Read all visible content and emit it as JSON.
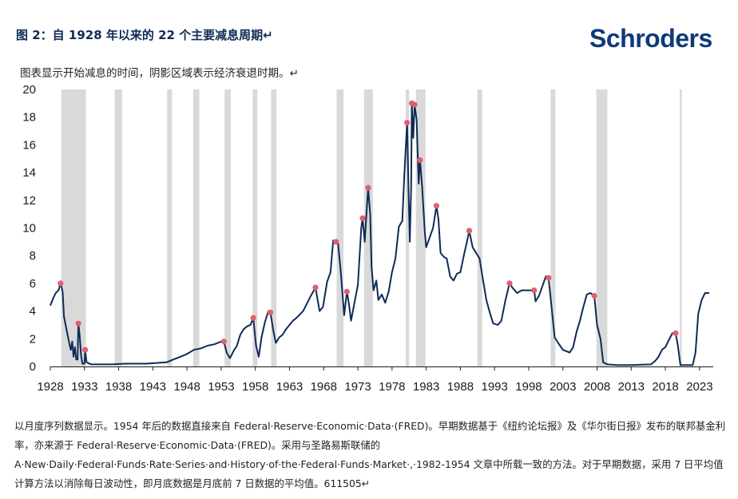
{
  "header": {
    "title": "图 2：自 1928 年以来的 22 个主要减息周期↵",
    "brand": "Schroders"
  },
  "subtitle": "图表显示开始减息的时间，阴影区域表示经济衰退时期。↵",
  "footnote": "以月度序列数据显示。1954 年后的数据直接来自 Federal·Reserve·Economic·Data·(FRED)。早期数据基于《纽约论坛报》及《华尔街日报》发布的联邦基金利率，亦来源于 Federal·Reserve·Economic·Data·(FRED)。采用与圣路易斯联储的 A·New·Daily·Federal·Funds·Rate·Series·and·History·of·the·Federal·Funds·Market·,·1982-1954 文章中所载一致的方法。对于早期数据，采用 7 日平均值计算方法以消除每日波动性，即月底数据是月底前 7 日数据的平均值。611505↵",
  "colors": {
    "line": "#0e2b56",
    "marker": "#e0606f",
    "recession": "#d9d9d9",
    "axis": "#1a1a1a"
  },
  "chart_data": {
    "type": "line",
    "xlim": [
      1928,
      2025
    ],
    "ylim": [
      0,
      20
    ],
    "x_ticks": [
      "1928",
      "1933",
      "1938",
      "1943",
      "1948",
      "1953",
      "1958",
      "1963",
      "1968",
      "1973",
      "1978",
      "1983",
      "1988",
      "1993",
      "1998",
      "2003",
      "2008",
      "2013",
      "2018",
      "2023"
    ],
    "y_ticks": [
      "0",
      "2",
      "4",
      "6",
      "8",
      "10",
      "12",
      "14",
      "16",
      "18",
      "20"
    ],
    "recessions": [
      [
        1929.6,
        1933.2
      ],
      [
        1937.4,
        1938.5
      ],
      [
        1945.1,
        1945.8
      ],
      [
        1948.9,
        1949.8
      ],
      [
        1953.5,
        1954.4
      ],
      [
        1957.6,
        1958.3
      ],
      [
        1960.3,
        1961.1
      ],
      [
        1969.9,
        1970.9
      ],
      [
        1973.9,
        1975.2
      ],
      [
        1980.0,
        1980.5
      ],
      [
        1981.5,
        1982.9
      ],
      [
        1990.5,
        1991.2
      ],
      [
        2001.2,
        2001.9
      ],
      [
        2007.9,
        2009.5
      ],
      [
        2020.1,
        2020.4
      ]
    ],
    "series": [
      {
        "points": [
          [
            1928.0,
            4.4
          ],
          [
            1928.4,
            4.9
          ],
          [
            1928.8,
            5.3
          ],
          [
            1929.2,
            5.5
          ],
          [
            1929.5,
            6.0
          ],
          [
            1929.8,
            5.4
          ],
          [
            1930.0,
            3.6
          ],
          [
            1930.4,
            2.6
          ],
          [
            1930.8,
            1.6
          ],
          [
            1931.0,
            1.2
          ],
          [
            1931.2,
            1.8
          ],
          [
            1931.4,
            0.7
          ],
          [
            1931.6,
            1.4
          ],
          [
            1931.8,
            0.5
          ],
          [
            1932.0,
            0.5
          ],
          [
            1932.1,
            3.1
          ],
          [
            1932.3,
            2.2
          ],
          [
            1932.5,
            0.8
          ],
          [
            1932.7,
            0.2
          ],
          [
            1933.0,
            0.2
          ],
          [
            1933.1,
            1.2
          ],
          [
            1933.3,
            0.3
          ],
          [
            1934.0,
            0.15
          ],
          [
            1937.0,
            0.15
          ],
          [
            1939.0,
            0.2
          ],
          [
            1942.0,
            0.2
          ],
          [
            1945.0,
            0.3
          ],
          [
            1946.0,
            0.5
          ],
          [
            1947.0,
            0.7
          ],
          [
            1948.0,
            0.9
          ],
          [
            1949.0,
            1.2
          ],
          [
            1950.0,
            1.3
          ],
          [
            1951.0,
            1.5
          ],
          [
            1952.0,
            1.6
          ],
          [
            1953.0,
            1.8
          ],
          [
            1953.4,
            1.8
          ],
          [
            1953.8,
            1.0
          ],
          [
            1954.3,
            0.6
          ],
          [
            1954.8,
            1.1
          ],
          [
            1955.3,
            1.5
          ],
          [
            1955.8,
            2.3
          ],
          [
            1956.3,
            2.7
          ],
          [
            1956.8,
            2.9
          ],
          [
            1957.3,
            3.0
          ],
          [
            1957.7,
            3.5
          ],
          [
            1958.1,
            1.5
          ],
          [
            1958.5,
            0.7
          ],
          [
            1958.9,
            2.1
          ],
          [
            1959.4,
            3.2
          ],
          [
            1959.9,
            4.0
          ],
          [
            1960.2,
            3.9
          ],
          [
            1960.7,
            2.4
          ],
          [
            1961.0,
            1.7
          ],
          [
            1961.5,
            2.1
          ],
          [
            1962.0,
            2.3
          ],
          [
            1962.5,
            2.7
          ],
          [
            1963.0,
            3.0
          ],
          [
            1963.5,
            3.3
          ],
          [
            1964.0,
            3.5
          ],
          [
            1965.0,
            4.0
          ],
          [
            1966.0,
            5.0
          ],
          [
            1966.8,
            5.7
          ],
          [
            1967.4,
            4.0
          ],
          [
            1967.9,
            4.3
          ],
          [
            1968.5,
            6.1
          ],
          [
            1969.0,
            6.8
          ],
          [
            1969.4,
            9.1
          ],
          [
            1969.8,
            9.0
          ],
          [
            1970.1,
            8.9
          ],
          [
            1970.5,
            6.8
          ],
          [
            1971.0,
            3.7
          ],
          [
            1971.4,
            5.4
          ],
          [
            1971.7,
            4.5
          ],
          [
            1972.0,
            3.3
          ],
          [
            1972.5,
            4.6
          ],
          [
            1973.0,
            5.9
          ],
          [
            1973.5,
            10.0
          ],
          [
            1973.7,
            10.7
          ],
          [
            1974.0,
            9.0
          ],
          [
            1974.5,
            12.9
          ],
          [
            1974.8,
            11.0
          ],
          [
            1975.0,
            7.2
          ],
          [
            1975.3,
            5.5
          ],
          [
            1975.7,
            6.2
          ],
          [
            1976.0,
            4.8
          ],
          [
            1976.5,
            5.2
          ],
          [
            1977.0,
            4.6
          ],
          [
            1977.5,
            5.4
          ],
          [
            1978.0,
            6.8
          ],
          [
            1978.5,
            7.8
          ],
          [
            1979.0,
            10.1
          ],
          [
            1979.5,
            10.5
          ],
          [
            1979.8,
            13.8
          ],
          [
            1980.2,
            17.6
          ],
          [
            1980.4,
            13.0
          ],
          [
            1980.6,
            9.0
          ],
          [
            1980.8,
            13.0
          ],
          [
            1980.9,
            19.0
          ],
          [
            1981.1,
            16.5
          ],
          [
            1981.3,
            18.9
          ],
          [
            1981.6,
            17.8
          ],
          [
            1981.9,
            13.2
          ],
          [
            1982.1,
            14.9
          ],
          [
            1982.4,
            13.0
          ],
          [
            1982.8,
            9.7
          ],
          [
            1983.0,
            8.6
          ],
          [
            1983.5,
            9.3
          ],
          [
            1984.0,
            10.0
          ],
          [
            1984.5,
            11.6
          ],
          [
            1984.8,
            10.6
          ],
          [
            1985.1,
            8.2
          ],
          [
            1985.6,
            7.9
          ],
          [
            1986.0,
            7.8
          ],
          [
            1986.5,
            6.5
          ],
          [
            1987.0,
            6.2
          ],
          [
            1987.5,
            6.7
          ],
          [
            1988.0,
            6.8
          ],
          [
            1988.5,
            8.0
          ],
          [
            1989.0,
            9.1
          ],
          [
            1989.3,
            9.8
          ],
          [
            1989.8,
            8.6
          ],
          [
            1990.3,
            8.2
          ],
          [
            1990.8,
            7.8
          ],
          [
            1991.3,
            6.3
          ],
          [
            1991.8,
            4.8
          ],
          [
            1992.3,
            3.9
          ],
          [
            1992.8,
            3.1
          ],
          [
            1993.5,
            3.0
          ],
          [
            1994.0,
            3.3
          ],
          [
            1994.6,
            4.8
          ],
          [
            1995.2,
            6.0
          ],
          [
            1995.6,
            5.7
          ],
          [
            1996.3,
            5.3
          ],
          [
            1997.0,
            5.5
          ],
          [
            1997.6,
            5.5
          ],
          [
            1998.3,
            5.5
          ],
          [
            1998.8,
            5.5
          ],
          [
            1999.0,
            4.7
          ],
          [
            1999.5,
            5.1
          ],
          [
            2000.0,
            5.8
          ],
          [
            2000.5,
            6.5
          ],
          [
            2000.9,
            6.4
          ],
          [
            2001.3,
            4.5
          ],
          [
            2001.8,
            2.1
          ],
          [
            2002.3,
            1.7
          ],
          [
            2003.0,
            1.2
          ],
          [
            2004.0,
            1.0
          ],
          [
            2004.5,
            1.4
          ],
          [
            2005.0,
            2.5
          ],
          [
            2005.5,
            3.3
          ],
          [
            2006.0,
            4.3
          ],
          [
            2006.5,
            5.2
          ],
          [
            2007.0,
            5.3
          ],
          [
            2007.6,
            5.1
          ],
          [
            2008.0,
            3.0
          ],
          [
            2008.5,
            2.0
          ],
          [
            2008.9,
            0.3
          ],
          [
            2009.5,
            0.15
          ],
          [
            2011.0,
            0.1
          ],
          [
            2013.0,
            0.1
          ],
          [
            2015.9,
            0.15
          ],
          [
            2016.5,
            0.4
          ],
          [
            2017.0,
            0.7
          ],
          [
            2017.5,
            1.2
          ],
          [
            2018.0,
            1.4
          ],
          [
            2018.5,
            1.9
          ],
          [
            2019.0,
            2.4
          ],
          [
            2019.5,
            2.4
          ],
          [
            2019.8,
            1.6
          ],
          [
            2020.2,
            0.1
          ],
          [
            2021.5,
            0.1
          ],
          [
            2022.0,
            0.1
          ],
          [
            2022.4,
            1.0
          ],
          [
            2022.8,
            3.8
          ],
          [
            2023.3,
            4.8
          ],
          [
            2023.8,
            5.3
          ],
          [
            2024.4,
            5.3
          ]
        ]
      }
    ],
    "cut_starts": [
      [
        1929.5,
        6.0
      ],
      [
        1932.1,
        3.1
      ],
      [
        1933.1,
        1.2
      ],
      [
        1953.4,
        1.8
      ],
      [
        1957.7,
        3.5
      ],
      [
        1960.2,
        3.9
      ],
      [
        1966.8,
        5.7
      ],
      [
        1969.8,
        9.0
      ],
      [
        1971.4,
        5.4
      ],
      [
        1973.7,
        10.7
      ],
      [
        1974.5,
        12.9
      ],
      [
        1980.2,
        17.6
      ],
      [
        1980.9,
        19.0
      ],
      [
        1981.3,
        18.9
      ],
      [
        1982.1,
        14.9
      ],
      [
        1984.5,
        11.6
      ],
      [
        1989.3,
        9.8
      ],
      [
        1995.2,
        6.0
      ],
      [
        1998.8,
        5.5
      ],
      [
        2000.9,
        6.4
      ],
      [
        2007.6,
        5.1
      ],
      [
        2019.5,
        2.4
      ]
    ]
  }
}
